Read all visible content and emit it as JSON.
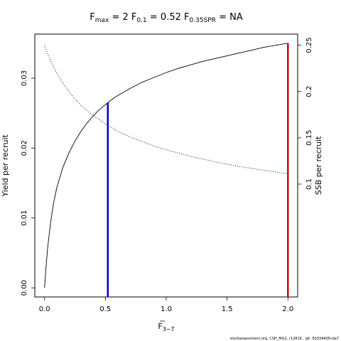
{
  "chart_data": {
    "type": "line",
    "title": {
      "fmax_value": "2",
      "f01_value": "0.52",
      "f035_value": "NA"
    },
    "xlabel": "F",
    "xlabel_sub": "3−7",
    "ylabel_left": "Yield per recruit",
    "ylabel_right": "SSB per recruit",
    "xlim": [
      -0.08,
      2.08
    ],
    "ylim_left": [
      -0.0013,
      0.0363
    ],
    "ylim_right": [
      -0.022,
      0.262
    ],
    "x_ticks": [
      0.0,
      0.5,
      1.0,
      1.5,
      2.0
    ],
    "x_tick_labels": [
      "0.0",
      "0.5",
      "1.0",
      "1.5",
      "2.0"
    ],
    "y_left_ticks": [
      0.0,
      0.01,
      0.02,
      0.03
    ],
    "y_left_tick_labels": [
      "0.00",
      "0.01",
      "0.02",
      "0.03"
    ],
    "y_right_ticks": [
      0.1,
      0.15,
      0.2,
      0.25
    ],
    "y_right_tick_labels": [
      "0.1",
      "0.15",
      "0.2",
      "0.25"
    ],
    "series": [
      {
        "axis": "left",
        "style": "solid",
        "x": [
          0,
          0.01,
          0.025,
          0.05,
          0.075,
          0.1,
          0.15,
          0.2,
          0.25,
          0.3,
          0.35,
          0.4,
          0.45,
          0.5,
          0.55,
          0.6,
          0.7,
          0.8,
          0.9,
          1.0,
          1.1,
          1.2,
          1.3,
          1.4,
          1.5,
          1.6,
          1.7,
          1.8,
          1.9,
          2.0
        ],
        "y": [
          0,
          0.00251,
          0.00565,
          0.0094,
          0.0122,
          0.0143,
          0.0172,
          0.0193,
          0.021,
          0.0224,
          0.0236,
          0.0246,
          0.0255,
          0.0262,
          0.0269,
          0.0275,
          0.0285,
          0.0294,
          0.0301,
          0.0308,
          0.0314,
          0.0319,
          0.0324,
          0.0328,
          0.0332,
          0.0336,
          0.034,
          0.0344,
          0.0347,
          0.035
        ]
      },
      {
        "axis": "right",
        "style": "dotted",
        "x": [
          0,
          0.025,
          0.05,
          0.1,
          0.15,
          0.2,
          0.25,
          0.3,
          0.4,
          0.5,
          0.6,
          0.7,
          0.8,
          0.9,
          1.0,
          1.2,
          1.4,
          1.6,
          1.8,
          2.0
        ],
        "y": [
          0.25,
          0.241,
          0.233,
          0.22,
          0.209,
          0.2,
          0.192,
          0.185,
          0.174,
          0.165,
          0.157,
          0.151,
          0.146,
          0.141,
          0.137,
          0.13,
          0.124,
          0.119,
          0.115,
          0.111
        ]
      }
    ],
    "reference_lines": [
      {
        "x": 0.52,
        "color": "#0000cc"
      },
      {
        "x": 2.0,
        "color": "#dd0000"
      }
    ],
    "footer": "stockassessment.org, CSH_MG2, r12816 , git: 5b334405cda7"
  }
}
